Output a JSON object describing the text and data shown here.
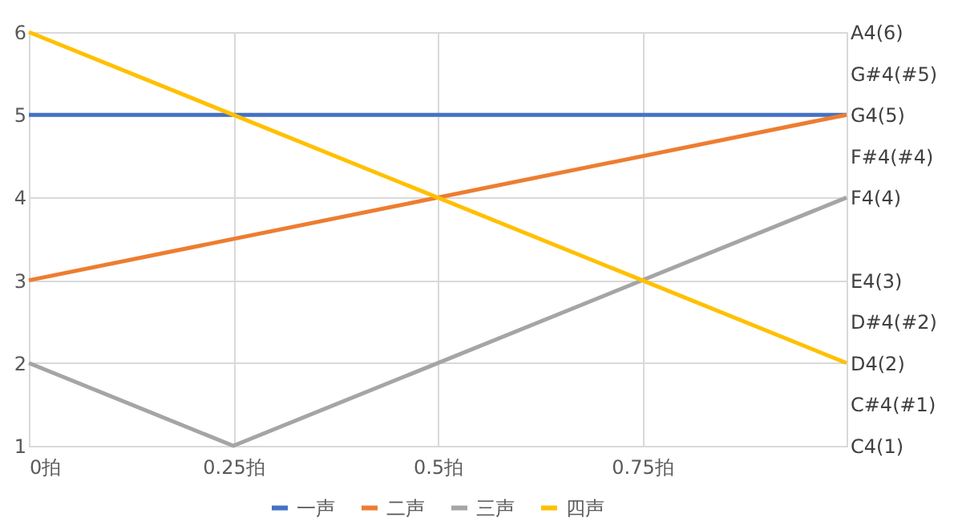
{
  "chart_data": {
    "type": "line",
    "xlim": [
      0,
      1
    ],
    "xticks": [
      {
        "value": 0,
        "label": "0拍"
      },
      {
        "value": 0.25,
        "label": "0.25拍"
      },
      {
        "value": 0.5,
        "label": "0.5拍"
      },
      {
        "value": 0.75,
        "label": "0.75拍"
      },
      {
        "value": 1,
        "label": null
      }
    ],
    "ylim": [
      1,
      6
    ],
    "yticks": [
      1,
      2,
      3,
      4,
      5,
      6
    ],
    "y2_categories": [
      "A4(6)",
      "G#4(#5)",
      "G4(5)",
      "F#4(#4)",
      "F4(4)",
      null,
      "E4(3)",
      "D#4(#2)",
      "D4(2)",
      "C#4(#1)",
      "C4(1)"
    ],
    "grid": true,
    "legend": "bottom",
    "marker": "none",
    "line_style": "solid",
    "series": [
      {
        "name": "一声",
        "color": "#4472c4",
        "x": [
          0,
          1
        ],
        "values": [
          5,
          5
        ]
      },
      {
        "name": "二声",
        "color": "#ed7d31",
        "x": [
          0,
          1
        ],
        "values": [
          3,
          5
        ]
      },
      {
        "name": "三声",
        "color": "#a5a5a5",
        "x": [
          0,
          0.25,
          1
        ],
        "values": [
          2,
          1,
          4
        ]
      },
      {
        "name": "四声",
        "color": "#ffc000",
        "x": [
          0,
          1
        ],
        "values": [
          6,
          2
        ]
      }
    ]
  }
}
